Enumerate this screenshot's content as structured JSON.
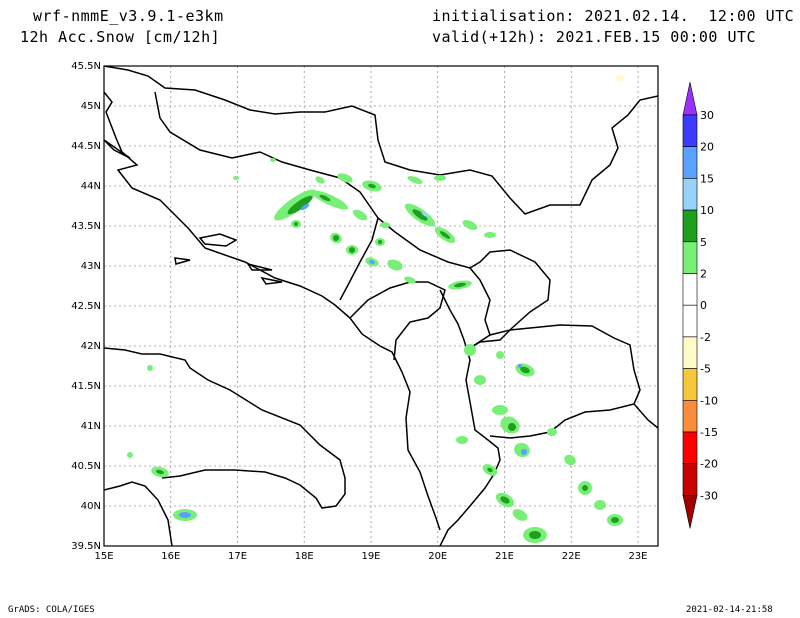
{
  "header": {
    "model": "wrf-nmmE_v3.9.1-e3km",
    "field": "12h Acc.Snow [cm/12h]",
    "init": "initialisation: 2021.02.14.  12:00 UTC",
    "valid": "valid(+12h): 2021.FEB.15 00:00 UTC"
  },
  "footer": {
    "left": "GrADS: COLA/IGES",
    "right": "2021-02-14-21:58"
  },
  "map": {
    "lon_range": [
      15,
      23.3
    ],
    "lat_range": [
      39.5,
      45.5
    ],
    "lat_ticks": [
      "45.5N",
      "45N",
      "44.5N",
      "44N",
      "43.5N",
      "43N",
      "42.5N",
      "42N",
      "41.5N",
      "41N",
      "40.5N",
      "40N",
      "39.5N"
    ],
    "lon_ticks": [
      "15E",
      "16E",
      "17E",
      "18E",
      "19E",
      "20E",
      "21E",
      "22E",
      "23E"
    ],
    "grid": true
  },
  "colorbar": {
    "labels": [
      "30",
      "20",
      "15",
      "10",
      "5",
      "2",
      "0",
      "-2",
      "-5",
      "-10",
      "-15",
      "-20",
      "-30"
    ],
    "colors": [
      "#9b30ff",
      "#3c3cff",
      "#5aa0ff",
      "#96d2fa",
      "#1ea01e",
      "#78f078",
      "#ffffff",
      "#ffffff",
      "#fffac8",
      "#f5c83c",
      "#fa8c3c",
      "#ff0000",
      "#c80000",
      "#a00000"
    ]
  }
}
